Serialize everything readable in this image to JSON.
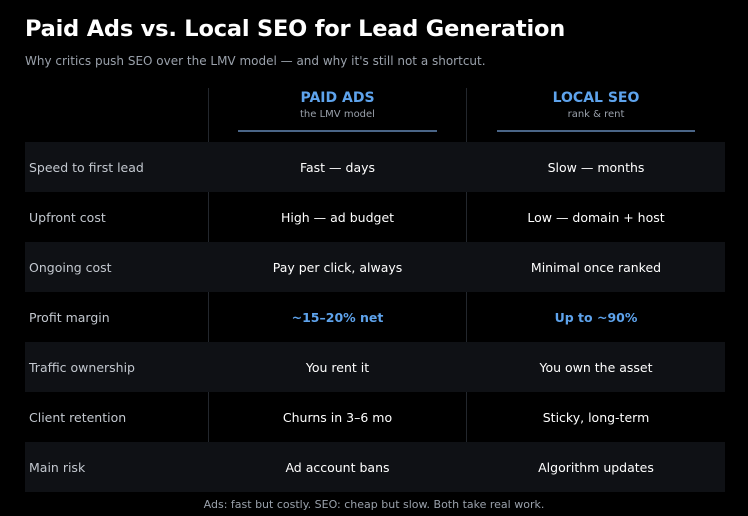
{
  "header": {
    "title": "Paid Ads vs. Local SEO for Lead Generation",
    "subtitle": "Why critics push SEO over the LMV model — and why it's still not a shortcut."
  },
  "columns": [
    {
      "name": "PAID ADS",
      "sub": "the LMV model"
    },
    {
      "name": "LOCAL SEO",
      "sub": "rank & rent"
    }
  ],
  "rows": [
    {
      "label": "Speed to first lead",
      "paid": "Fast — days",
      "seo": "Slow — months"
    },
    {
      "label": "Upfront cost",
      "paid": "High — ad budget",
      "seo": "Low — domain + host"
    },
    {
      "label": "Ongoing cost",
      "paid": "Pay per click, always",
      "seo": "Minimal once ranked"
    },
    {
      "label": "Profit margin",
      "paid": "~15–20% net",
      "seo": "Up to ~90%"
    },
    {
      "label": "Traffic ownership",
      "paid": "You rent it",
      "seo": "You own the asset"
    },
    {
      "label": "Client retention",
      "paid": "Churns in 3–6 mo",
      "seo": "Sticky, long-term"
    },
    {
      "label": "Main risk",
      "paid": "Ad account bans",
      "seo": "Algorithm updates"
    }
  ],
  "footer": "Ads: fast but costly. SEO: cheap but slow. Both take real work.",
  "colors": {
    "background": "#000000",
    "accent": "#5ea3ec",
    "row_shade": "#0f1115"
  }
}
